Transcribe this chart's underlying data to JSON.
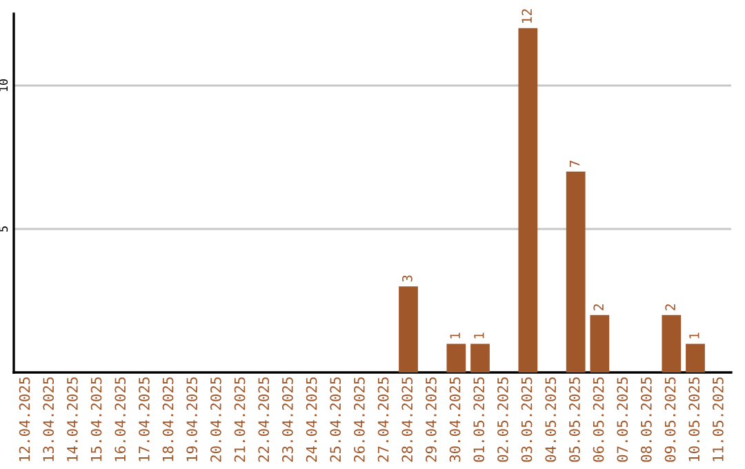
{
  "chart_data": {
    "type": "bar",
    "categories": [
      "12.04.2025",
      "13.04.2025",
      "14.04.2025",
      "15.04.2025",
      "16.04.2025",
      "17.04.2025",
      "18.04.2025",
      "19.04.2025",
      "20.04.2025",
      "21.04.2025",
      "22.04.2025",
      "23.04.2025",
      "24.04.2025",
      "25.04.2025",
      "26.04.2025",
      "27.04.2025",
      "28.04.2025",
      "29.04.2025",
      "30.04.2025",
      "01.05.2025",
      "02.05.2025",
      "03.05.2025",
      "04.05.2025",
      "05.05.2025",
      "06.05.2025",
      "07.05.2025",
      "08.05.2025",
      "09.05.2025",
      "10.05.2025",
      "11.05.2025"
    ],
    "values": [
      0,
      0,
      0,
      0,
      0,
      0,
      0,
      0,
      0,
      0,
      0,
      0,
      0,
      0,
      0,
      0,
      3,
      0,
      1,
      1,
      0,
      12,
      0,
      7,
      2,
      0,
      0,
      2,
      1,
      0
    ],
    "value_labels": [
      null,
      null,
      null,
      null,
      null,
      null,
      null,
      null,
      null,
      null,
      null,
      null,
      null,
      null,
      null,
      null,
      "3",
      null,
      "1",
      "1",
      null,
      "12",
      null,
      "7",
      "2",
      null,
      null,
      "2",
      "1",
      null
    ],
    "color": "#a0572a",
    "ylim": [
      0,
      12.5
    ],
    "yticks": [
      5,
      10
    ],
    "grid": "y"
  }
}
